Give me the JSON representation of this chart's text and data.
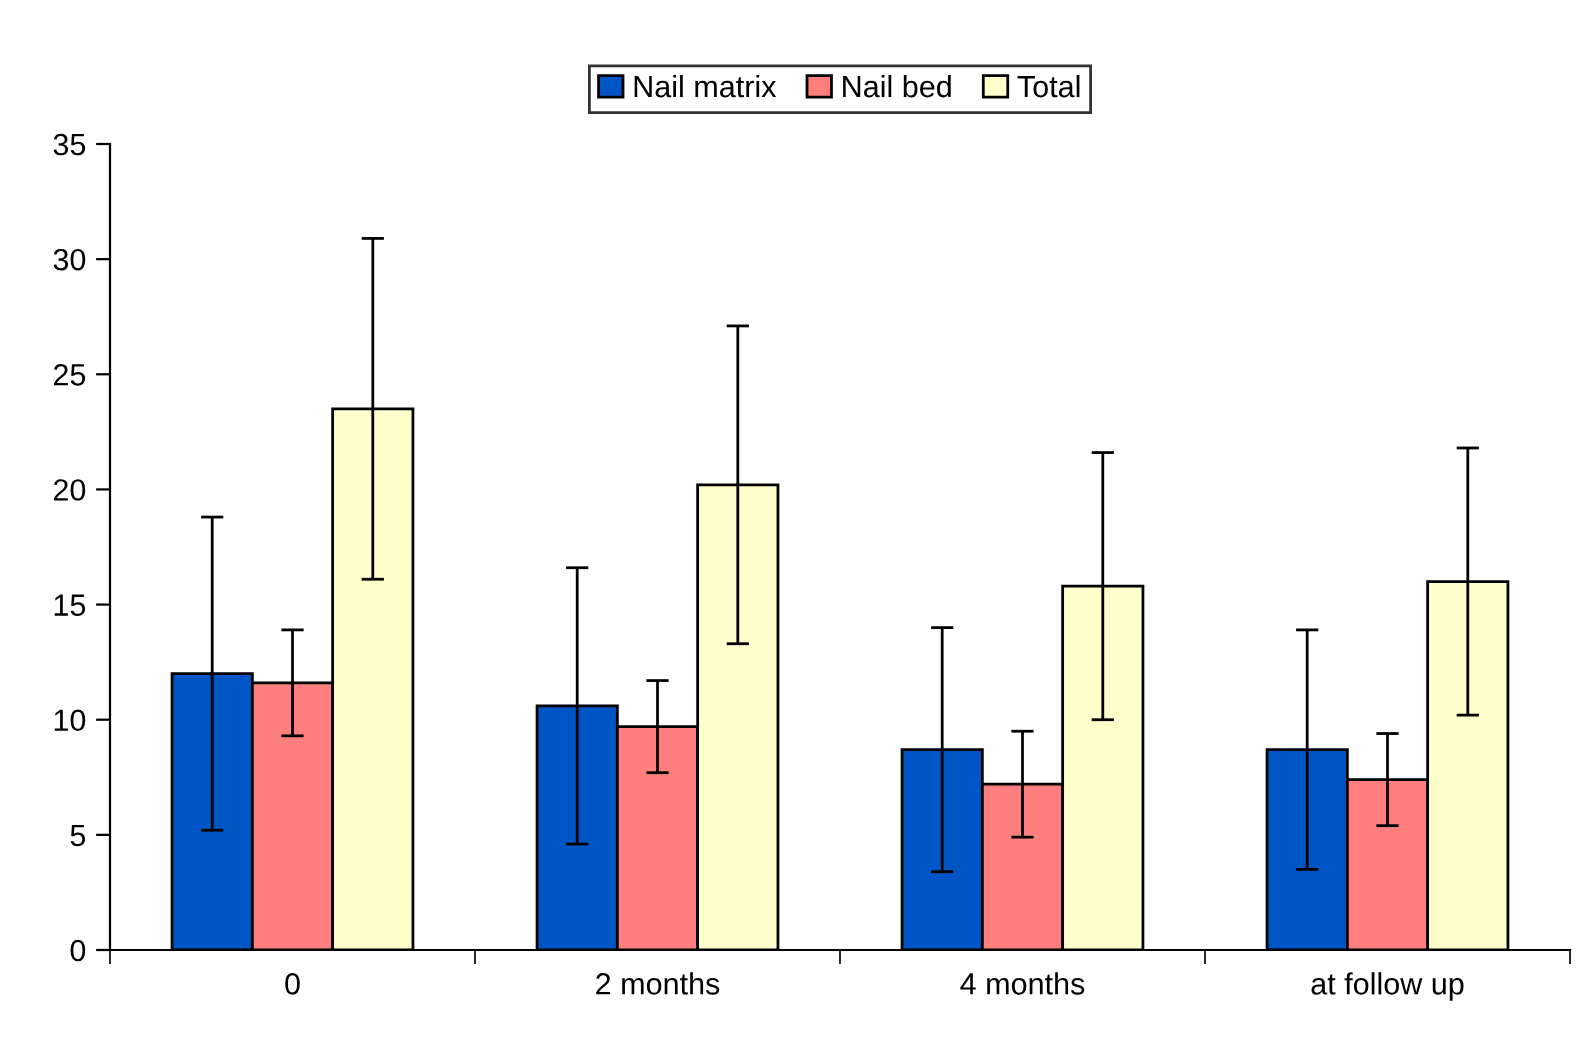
{
  "chart_data": {
    "type": "bar",
    "categories": [
      "0",
      "2 months",
      "4 months",
      "at follow up"
    ],
    "series": [
      {
        "name": "Nail matrix",
        "color": "#0055c4",
        "values": [
          12.0,
          10.6,
          8.7,
          8.7
        ],
        "errors": [
          6.8,
          6.0,
          5.3,
          5.2
        ]
      },
      {
        "name": "Nail bed",
        "color": "#ff7f7f",
        "values": [
          11.6,
          9.7,
          7.2,
          7.4
        ],
        "errors": [
          2.3,
          2.0,
          2.3,
          2.0
        ]
      },
      {
        "name": "Total",
        "color": "#ffffcc",
        "values": [
          23.5,
          20.2,
          15.8,
          16.0
        ],
        "errors": [
          7.4,
          6.9,
          5.8,
          5.8
        ]
      }
    ],
    "ylim": [
      0,
      35
    ],
    "yticks": [
      0,
      5,
      10,
      15,
      20,
      25,
      30,
      35
    ],
    "legend": "top",
    "grid": false
  }
}
